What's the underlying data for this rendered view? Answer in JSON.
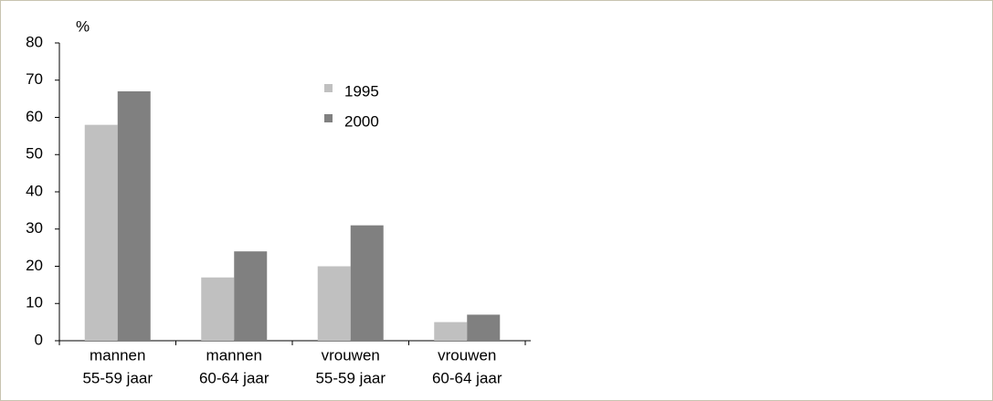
{
  "chart_data": {
    "type": "bar",
    "y_label": "%",
    "categories": [
      [
        "mannen",
        "55-59 jaar"
      ],
      [
        "mannen",
        "60-64 jaar"
      ],
      [
        "vrouwen",
        "55-59 jaar"
      ],
      [
        "vrouwen",
        "60-64 jaar"
      ]
    ],
    "series": [
      {
        "name": "1995",
        "color": "#c0c0c0",
        "values": [
          58,
          17,
          20,
          5
        ]
      },
      {
        "name": "2000",
        "color": "#808080",
        "values": [
          67,
          24,
          31,
          7
        ]
      }
    ],
    "ylim": [
      0,
      80
    ],
    "yticks": [
      0,
      10,
      20,
      30,
      40,
      50,
      60,
      70,
      80
    ],
    "grid": false
  }
}
